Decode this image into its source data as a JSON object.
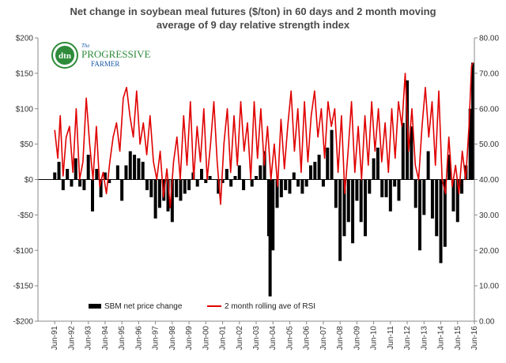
{
  "chart_data": {
    "type": "bar+line",
    "title_lines": [
      "Net change in soybean meal futures ($/ton) in 60 days and 2 month moving",
      "average of 9 day relative strength index"
    ],
    "left_axis": {
      "ylim": [
        -200,
        200
      ],
      "ticks": [
        -200,
        -150,
        -100,
        -50,
        0,
        50,
        100,
        150,
        200
      ],
      "tick_labels": [
        "-$200",
        "-$150",
        "-$100",
        "-$50",
        "$0",
        "$50",
        "$100",
        "$150",
        "$200"
      ]
    },
    "right_axis": {
      "ylim": [
        0,
        80
      ],
      "ticks": [
        0,
        10,
        20,
        30,
        40,
        50,
        60,
        70,
        80
      ],
      "tick_labels": [
        "0.00",
        "10.00",
        "20.00",
        "30.00",
        "40.00",
        "50.00",
        "60.00",
        "70.00",
        "80.00"
      ]
    },
    "x_axis": {
      "start_year": 1991,
      "end_year": 2016,
      "tick_labels": [
        "Jun-91",
        "Jun-92",
        "Jun-93",
        "Jun-94",
        "Jun-95",
        "Jun-96",
        "Jun-97",
        "Jun-98",
        "Jun-99",
        "Jun-00",
        "Jun-01",
        "Jun-02",
        "Jun-03",
        "Jun-04",
        "Jun-05",
        "Jun-06",
        "Jun-07",
        "Jun-08",
        "Jun-09",
        "Jun-10",
        "Jun-11",
        "Jun-12",
        "Jun-13",
        "Jun-14",
        "Jun-15",
        "Jun-16"
      ]
    },
    "series": [
      {
        "name": "SBM net price change",
        "kind": "bar",
        "axis": "left",
        "color": "#000000",
        "points": [
          [
            1991.42,
            10
          ],
          [
            1991.67,
            25
          ],
          [
            1991.92,
            -15
          ],
          [
            1992.17,
            15
          ],
          [
            1992.42,
            -10
          ],
          [
            1992.67,
            30
          ],
          [
            1992.92,
            -10
          ],
          [
            1993.17,
            -15
          ],
          [
            1993.42,
            35
          ],
          [
            1993.67,
            -45
          ],
          [
            1993.92,
            15
          ],
          [
            1994.17,
            -25
          ],
          [
            1994.42,
            10
          ],
          [
            1994.67,
            -5
          ],
          [
            1995.17,
            20
          ],
          [
            1995.42,
            -30
          ],
          [
            1995.67,
            20
          ],
          [
            1995.92,
            40
          ],
          [
            1996.17,
            35
          ],
          [
            1996.42,
            30
          ],
          [
            1996.67,
            25
          ],
          [
            1996.92,
            -15
          ],
          [
            1997.17,
            -25
          ],
          [
            1997.42,
            -55
          ],
          [
            1997.67,
            -40
          ],
          [
            1997.92,
            -30
          ],
          [
            1998.17,
            -45
          ],
          [
            1998.42,
            -60
          ],
          [
            1998.67,
            -25
          ],
          [
            1998.92,
            -30
          ],
          [
            1999.17,
            -20
          ],
          [
            1999.42,
            -15
          ],
          [
            1999.67,
            10
          ],
          [
            1999.92,
            -10
          ],
          [
            2000.17,
            15
          ],
          [
            2000.42,
            -5
          ],
          [
            2000.67,
            5
          ],
          [
            2001.17,
            -20
          ],
          [
            2001.42,
            -5
          ],
          [
            2001.67,
            15
          ],
          [
            2001.92,
            -10
          ],
          [
            2002.17,
            5
          ],
          [
            2002.42,
            20
          ],
          [
            2002.67,
            -15
          ],
          [
            2003.17,
            -10
          ],
          [
            2003.42,
            5
          ],
          [
            2003.67,
            20
          ],
          [
            2003.92,
            40
          ],
          [
            2004.17,
            -80
          ],
          [
            2004.25,
            -165
          ],
          [
            2004.42,
            -100
          ],
          [
            2004.67,
            -40
          ],
          [
            2004.92,
            -25
          ],
          [
            2005.17,
            -15
          ],
          [
            2005.42,
            -20
          ],
          [
            2005.67,
            10
          ],
          [
            2005.92,
            -10
          ],
          [
            2006.17,
            -20
          ],
          [
            2006.42,
            -10
          ],
          [
            2006.67,
            20
          ],
          [
            2006.92,
            25
          ],
          [
            2007.17,
            35
          ],
          [
            2007.42,
            -10
          ],
          [
            2007.67,
            45
          ],
          [
            2007.92,
            70
          ],
          [
            2008.17,
            -40
          ],
          [
            2008.42,
            -115
          ],
          [
            2008.67,
            -80
          ],
          [
            2008.92,
            -60
          ],
          [
            2009.17,
            -90
          ],
          [
            2009.42,
            -30
          ],
          [
            2009.67,
            -60
          ],
          [
            2009.92,
            -80
          ],
          [
            2010.17,
            -20
          ],
          [
            2010.42,
            30
          ],
          [
            2010.67,
            45
          ],
          [
            2010.92,
            -25
          ],
          [
            2011.17,
            -25
          ],
          [
            2011.42,
            -45
          ],
          [
            2011.67,
            -10
          ],
          [
            2011.92,
            -30
          ],
          [
            2012.17,
            80
          ],
          [
            2012.42,
            140
          ],
          [
            2012.67,
            75
          ],
          [
            2012.92,
            -40
          ],
          [
            2013.17,
            -100
          ],
          [
            2013.42,
            -50
          ],
          [
            2013.67,
            40
          ],
          [
            2013.92,
            -55
          ],
          [
            2014.17,
            -80
          ],
          [
            2014.42,
            -118
          ],
          [
            2014.67,
            -95
          ],
          [
            2014.92,
            35
          ],
          [
            2015.17,
            -45
          ],
          [
            2015.42,
            -60
          ],
          [
            2015.67,
            -20
          ],
          [
            2015.92,
            20
          ],
          [
            2016.17,
            100
          ],
          [
            2016.33,
            165
          ]
        ]
      },
      {
        "name": "2 month rolling ave of RSI",
        "kind": "line",
        "axis": "right",
        "color": "#e00000",
        "points": [
          [
            1991.42,
            54
          ],
          [
            1991.6,
            46
          ],
          [
            1991.75,
            58
          ],
          [
            1991.92,
            41
          ],
          [
            1992.1,
            52
          ],
          [
            1992.3,
            55
          ],
          [
            1992.5,
            42
          ],
          [
            1992.7,
            60
          ],
          [
            1992.9,
            40
          ],
          [
            1993.1,
            45
          ],
          [
            1993.3,
            63
          ],
          [
            1993.5,
            50
          ],
          [
            1993.7,
            40
          ],
          [
            1993.9,
            55
          ],
          [
            1994.1,
            38
          ],
          [
            1994.3,
            42
          ],
          [
            1994.5,
            36
          ],
          [
            1994.7,
            45
          ],
          [
            1994.9,
            52
          ],
          [
            1995.1,
            56
          ],
          [
            1995.3,
            48
          ],
          [
            1995.5,
            63
          ],
          [
            1995.7,
            66
          ],
          [
            1995.9,
            58
          ],
          [
            1996.1,
            52
          ],
          [
            1996.3,
            65
          ],
          [
            1996.5,
            50
          ],
          [
            1996.7,
            56
          ],
          [
            1996.9,
            47
          ],
          [
            1997.1,
            58
          ],
          [
            1997.3,
            45
          ],
          [
            1997.5,
            40
          ],
          [
            1997.7,
            48
          ],
          [
            1997.9,
            35
          ],
          [
            1998.1,
            43
          ],
          [
            1998.3,
            32
          ],
          [
            1998.5,
            45
          ],
          [
            1998.7,
            52
          ],
          [
            1998.9,
            40
          ],
          [
            1999.1,
            58
          ],
          [
            1999.3,
            44
          ],
          [
            1999.5,
            62
          ],
          [
            1999.7,
            40
          ],
          [
            1999.9,
            55
          ],
          [
            2000.1,
            45
          ],
          [
            2000.3,
            60
          ],
          [
            2000.5,
            40
          ],
          [
            2000.7,
            50
          ],
          [
            2000.9,
            62
          ],
          [
            2001.1,
            45
          ],
          [
            2001.3,
            33
          ],
          [
            2001.5,
            50
          ],
          [
            2001.7,
            60
          ],
          [
            2001.9,
            42
          ],
          [
            2002.1,
            58
          ],
          [
            2002.3,
            44
          ],
          [
            2002.5,
            62
          ],
          [
            2002.7,
            48
          ],
          [
            2002.9,
            56
          ],
          [
            2003.1,
            40
          ],
          [
            2003.3,
            62
          ],
          [
            2003.5,
            46
          ],
          [
            2003.7,
            60
          ],
          [
            2003.9,
            44
          ],
          [
            2004.1,
            55
          ],
          [
            2004.3,
            40
          ],
          [
            2004.5,
            50
          ],
          [
            2004.7,
            38
          ],
          [
            2004.9,
            57
          ],
          [
            2005.1,
            43
          ],
          [
            2005.3,
            55
          ],
          [
            2005.5,
            65
          ],
          [
            2005.7,
            48
          ],
          [
            2005.9,
            60
          ],
          [
            2006.1,
            42
          ],
          [
            2006.3,
            62
          ],
          [
            2006.5,
            45
          ],
          [
            2006.7,
            58
          ],
          [
            2006.9,
            65
          ],
          [
            2007.1,
            52
          ],
          [
            2007.3,
            60
          ],
          [
            2007.5,
            46
          ],
          [
            2007.7,
            62
          ],
          [
            2007.9,
            55
          ],
          [
            2008.1,
            60
          ],
          [
            2008.3,
            42
          ],
          [
            2008.5,
            58
          ],
          [
            2008.7,
            36
          ],
          [
            2008.9,
            48
          ],
          [
            2009.1,
            62
          ],
          [
            2009.3,
            42
          ],
          [
            2009.5,
            55
          ],
          [
            2009.7,
            40
          ],
          [
            2009.9,
            58
          ],
          [
            2010.1,
            44
          ],
          [
            2010.3,
            62
          ],
          [
            2010.5,
            48
          ],
          [
            2010.7,
            60
          ],
          [
            2010.9,
            45
          ],
          [
            2011.1,
            56
          ],
          [
            2011.3,
            42
          ],
          [
            2011.5,
            60
          ],
          [
            2011.7,
            46
          ],
          [
            2011.9,
            62
          ],
          [
            2012.1,
            55
          ],
          [
            2012.3,
            70
          ],
          [
            2012.5,
            48
          ],
          [
            2012.7,
            60
          ],
          [
            2012.9,
            44
          ],
          [
            2013.1,
            40
          ],
          [
            2013.3,
            55
          ],
          [
            2013.5,
            66
          ],
          [
            2013.7,
            52
          ],
          [
            2013.9,
            62
          ],
          [
            2014.1,
            44
          ],
          [
            2014.3,
            65
          ],
          [
            2014.5,
            40
          ],
          [
            2014.7,
            36
          ],
          [
            2014.9,
            52
          ],
          [
            2015.1,
            38
          ],
          [
            2015.3,
            44
          ],
          [
            2015.5,
            36
          ],
          [
            2015.7,
            48
          ],
          [
            2015.9,
            40
          ],
          [
            2016.1,
            55
          ],
          [
            2016.25,
            72
          ],
          [
            2016.33,
            73
          ]
        ]
      }
    ],
    "legend": {
      "placement": "bottom-center",
      "entries": [
        "SBM net price change",
        "2 month rolling ave of RSI"
      ]
    },
    "grid": false
  },
  "logo": {
    "mark_text": "dtn",
    "the_text": "The",
    "brand_line1": "PROGRESSIVE",
    "brand_line2": "FARMER"
  },
  "colors": {
    "bar": "#000000",
    "line": "#e00000",
    "logo_green": "#2e8b3a",
    "logo_blue": "#1a5aa8"
  }
}
